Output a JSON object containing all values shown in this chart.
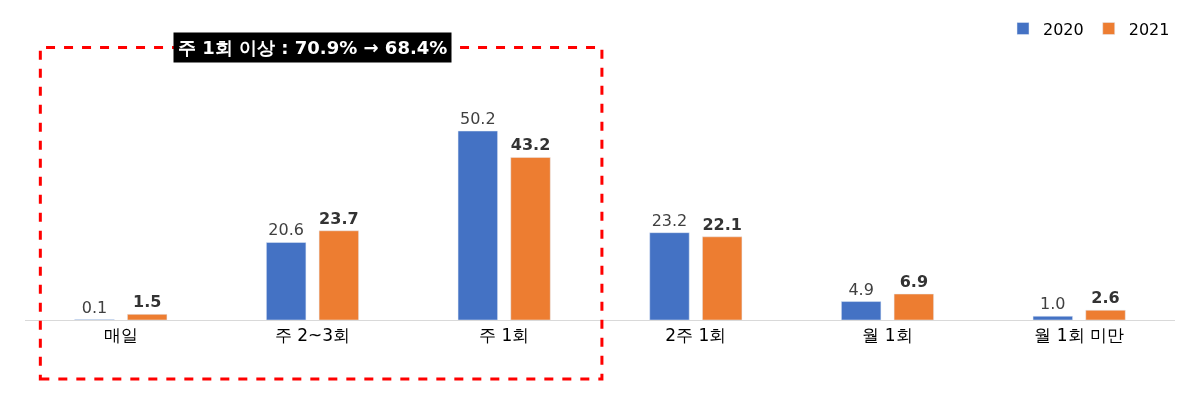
{
  "chart_data": {
    "type": "bar",
    "categories": [
      "매일",
      "주 2~3회",
      "주 1회",
      "2주 1회",
      "월 1회",
      "월 1회 미만"
    ],
    "series": [
      {
        "name": "2020",
        "color": "#4472c4",
        "values": [
          0.1,
          20.6,
          50.2,
          23.2,
          4.9,
          1.0
        ],
        "value_labels": [
          "0.1",
          "20.6",
          "50.2",
          "23.2",
          "4.9",
          "1.0"
        ]
      },
      {
        "name": "2021",
        "color": "#ed7d31",
        "values": [
          1.5,
          23.7,
          43.2,
          22.1,
          6.9,
          2.6
        ],
        "value_labels": [
          "1.5",
          "23.7",
          "43.2",
          "22.1",
          "6.9",
          "2.6"
        ]
      }
    ],
    "annotations": [
      "주 1회 이상 : 70.9% → 68.4%"
    ],
    "legend": "top right"
  }
}
